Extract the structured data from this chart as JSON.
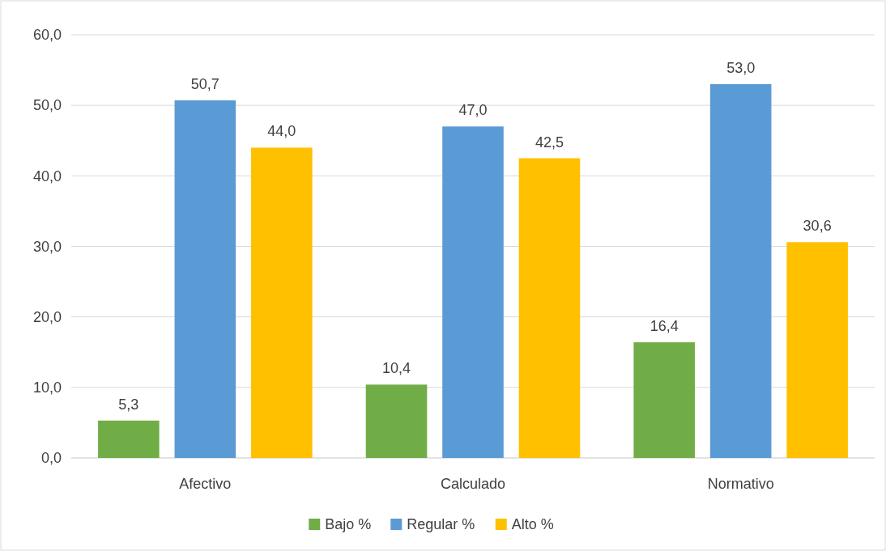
{
  "chart_data": {
    "type": "bar",
    "categories": [
      "Afectivo",
      "Calculado",
      "Normativo"
    ],
    "series": [
      {
        "name": "Bajo %",
        "color": "#70ad47",
        "values": [
          5.3,
          10.4,
          16.4
        ],
        "value_labels": [
          "5,3",
          "10,4",
          "16,4"
        ]
      },
      {
        "name": "Regular %",
        "color": "#5b9bd5",
        "values": [
          50.7,
          47.0,
          53.0
        ],
        "value_labels": [
          "50,7",
          "47,0",
          "53,0"
        ]
      },
      {
        "name": "Alto %",
        "color": "#ffc000",
        "values": [
          44.0,
          42.5,
          30.6
        ],
        "value_labels": [
          "44,0",
          "42,5",
          "30,6"
        ]
      }
    ],
    "ylim": [
      0,
      60
    ],
    "yticks": [
      {
        "value": 0,
        "label": "0,0"
      },
      {
        "value": 10,
        "label": "10,0"
      },
      {
        "value": 20,
        "label": "20,0"
      },
      {
        "value": 30,
        "label": "30,0"
      },
      {
        "value": 40,
        "label": "40,0"
      },
      {
        "value": 50,
        "label": "50,0"
      },
      {
        "value": 60,
        "label": "60,0"
      }
    ],
    "grid": "y",
    "legend": "bottom"
  }
}
